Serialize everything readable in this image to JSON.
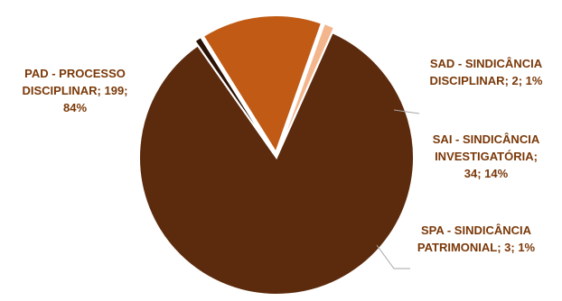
{
  "chart_data": {
    "type": "pie",
    "start_angle_deg": -66,
    "exploded_slices": [
      1,
      2,
      3
    ],
    "slices": [
      {
        "category": "PAD - PROCESSO DISCIPLINAR",
        "value": 199,
        "percent": "84%",
        "label_lines": [
          "PAD - PROCESSO",
          "DISCIPLINAR; 199;",
          "84%"
        ],
        "color": "#5c2a0c",
        "label_color": "#7a3808"
      },
      {
        "category": "SAD - SINDICÂNCIA DISCIPLINAR",
        "value": 2,
        "percent": "1%",
        "label_lines": [
          "SAD - SINDICÂNCIA",
          "DISCIPLINAR; 2; 1%"
        ],
        "color": "#2a1206",
        "label_color": "#7a3808"
      },
      {
        "category": "SAI - SINDICÂNCIA INVESTIGATÓRIA",
        "value": 34,
        "percent": "14%",
        "label_lines": [
          "SAI - SINDICÂNCIA",
          "INVESTIGATÓRIA;",
          "34; 14%"
        ],
        "color": "#c05a14",
        "label_color": "#7a3808"
      },
      {
        "category": "SPA - SINDICÂNCIA PATRIMONIAL",
        "value": 3,
        "percent": "1%",
        "label_lines": [
          "SPA - SINDICÂNCIA",
          "PATRIMONIAL; 3; 1%"
        ],
        "color": "#f3b58c",
        "label_color": "#7a3808"
      }
    ]
  }
}
